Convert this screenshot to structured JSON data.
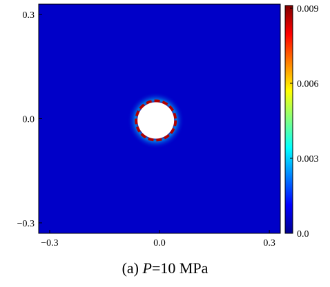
{
  "chart_data": {
    "type": "heatmap",
    "title": "",
    "xlabel": "",
    "ylabel": "",
    "xlim": [
      -0.33,
      0.33
    ],
    "ylim": [
      -0.33,
      0.33
    ],
    "x_ticks": [
      {
        "value": -0.3,
        "label": "−0.3"
      },
      {
        "value": 0.0,
        "label": "0.0"
      },
      {
        "value": 0.3,
        "label": "0.3"
      }
    ],
    "y_ticks": [
      {
        "value": 0.3,
        "label": "0.3"
      },
      {
        "value": 0.0,
        "label": "0.0"
      },
      {
        "value": -0.3,
        "label": "−0.3"
      }
    ],
    "hole": {
      "center_x": -0.01,
      "center_y": -0.005,
      "radius": 0.05
    },
    "background_value": 0.0,
    "rim_value": 0.009,
    "colorbar": {
      "min": 0.0,
      "max": 0.009,
      "ticks": [
        {
          "value": 0.009,
          "label": "0.009"
        },
        {
          "value": 0.006,
          "label": "0.006"
        },
        {
          "value": 0.003,
          "label": "0.003"
        },
        {
          "value": 0.0,
          "label": "0.0"
        }
      ],
      "colormap": [
        "#00008f",
        "#0000ff",
        "#0080ff",
        "#00ffff",
        "#80ff80",
        "#ffff00",
        "#ff8000",
        "#ff0000",
        "#800000"
      ]
    }
  },
  "caption": {
    "prefix": "(a) ",
    "variable": "P",
    "suffix": "=10 MPa"
  }
}
